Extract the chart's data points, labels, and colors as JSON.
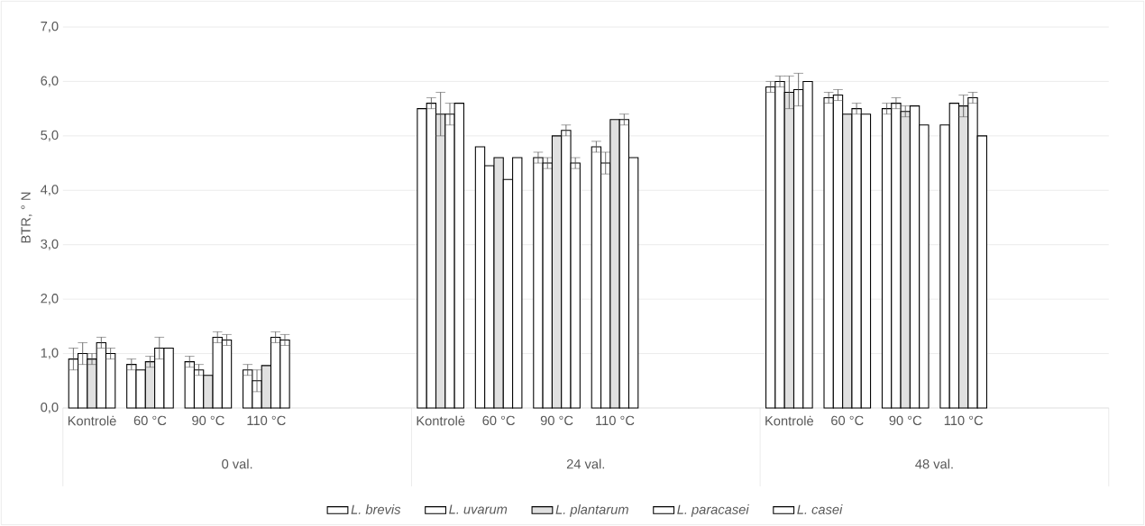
{
  "chart_data": {
    "type": "bar",
    "ylabel": "BTR, ° N",
    "categories": [
      "Kontrolė",
      "60 °C",
      "90 °C",
      "110 °C",
      null,
      null,
      "Kontrolė",
      "60 °C",
      "90 °C",
      "110 °C",
      null,
      null,
      "Kontrolė",
      "60 °C",
      "90 °C",
      "110 °C",
      null,
      null
    ],
    "series": [
      {
        "name": "L. brevis",
        "color": "#ffffff",
        "values": [
          0.9,
          0.8,
          0.85,
          0.7,
          null,
          null,
          5.5,
          4.8,
          4.6,
          4.8,
          null,
          null,
          5.9,
          5.7,
          5.5,
          5.2,
          null,
          null
        ],
        "errors": [
          0.2,
          0.1,
          0.1,
          0.1,
          null,
          null,
          null,
          null,
          0.1,
          0.1,
          null,
          null,
          0.1,
          0.1,
          0.1,
          null,
          null,
          null
        ]
      },
      {
        "name": "L. uvarum",
        "color": "#ffffff",
        "values": [
          1.0,
          0.7,
          0.7,
          0.5,
          null,
          null,
          5.6,
          4.45,
          4.5,
          4.5,
          null,
          null,
          6.0,
          5.75,
          5.6,
          5.6,
          null,
          null
        ],
        "errors": [
          0.2,
          null,
          0.1,
          0.2,
          null,
          null,
          0.1,
          null,
          0.1,
          0.2,
          null,
          null,
          0.1,
          0.1,
          0.1,
          null,
          null,
          null
        ]
      },
      {
        "name": "L. plantarum",
        "color": "#e0e0e0",
        "values": [
          0.9,
          0.85,
          0.6,
          0.78,
          null,
          null,
          5.4,
          4.6,
          5.0,
          5.3,
          null,
          null,
          5.8,
          5.4,
          5.45,
          5.55,
          null,
          null
        ],
        "errors": [
          0.1,
          0.1,
          null,
          null,
          null,
          null,
          0.4,
          null,
          null,
          null,
          null,
          null,
          0.3,
          null,
          0.1,
          0.2,
          null,
          null
        ]
      },
      {
        "name": "L. paracasei",
        "color": "#ffffff",
        "values": [
          1.2,
          1.1,
          1.3,
          1.3,
          null,
          null,
          5.4,
          4.2,
          5.1,
          5.3,
          null,
          null,
          5.85,
          5.5,
          5.55,
          5.7,
          null,
          null
        ],
        "errors": [
          0.1,
          0.2,
          0.1,
          0.1,
          null,
          null,
          0.2,
          null,
          0.1,
          0.1,
          null,
          null,
          0.3,
          0.1,
          null,
          0.1,
          null,
          null
        ]
      },
      {
        "name": "L. casei",
        "color": "#ffffff",
        "values": [
          1.0,
          1.1,
          1.25,
          1.25,
          null,
          null,
          5.6,
          4.6,
          4.5,
          4.6,
          null,
          null,
          6.0,
          5.4,
          5.2,
          5.0,
          null,
          null
        ],
        "errors": [
          0.1,
          null,
          0.1,
          0.1,
          null,
          null,
          null,
          null,
          0.1,
          null,
          null,
          null,
          null,
          null,
          null,
          null,
          null,
          null
        ]
      }
    ],
    "ylim": [
      0,
      7
    ],
    "yticks": [
      {
        "value": 0,
        "label": "0,0"
      },
      {
        "value": 1,
        "label": "1,0"
      },
      {
        "value": 2,
        "label": "2,0"
      },
      {
        "value": 3,
        "label": "3,0"
      },
      {
        "value": 4,
        "label": "4,0"
      },
      {
        "value": 5,
        "label": "5,0"
      },
      {
        "value": 6,
        "label": "6,0"
      },
      {
        "value": 7,
        "label": "7,0"
      }
    ],
    "annotations": [
      "0 val.",
      "24 val.",
      "48 val."
    ],
    "grid": "y",
    "legend": "bottom"
  }
}
